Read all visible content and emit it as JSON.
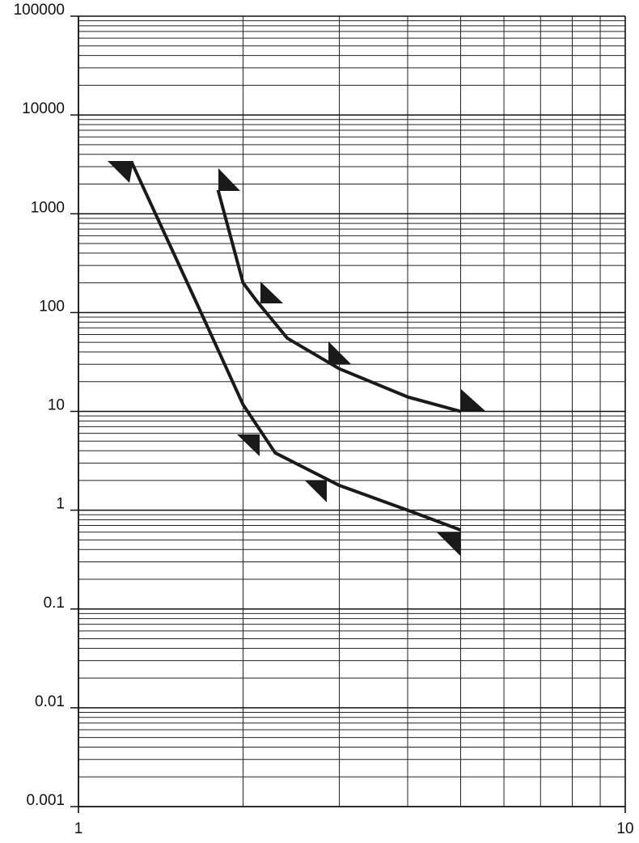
{
  "chart_data": {
    "type": "line",
    "xlog": true,
    "ylog": true,
    "grid": true,
    "minor_grid": true,
    "xlim": [
      1,
      10
    ],
    "ylim": [
      0.001,
      100000
    ],
    "xticks": [
      1,
      10
    ],
    "yticks": [
      0.001,
      0.01,
      0.1,
      1,
      10,
      100,
      1000,
      10000,
      100000
    ],
    "series": [
      {
        "color": "#1a1a1a",
        "x": [
          1.25,
          1.66,
          2,
          2.29,
          3,
          4,
          5
        ],
        "values": [
          3360,
          112,
          11.7,
          3.8,
          1.78,
          1,
          0.63
        ]
      },
      {
        "color": "#1a1a1a",
        "x": [
          1.8,
          2,
          2.12,
          2.41,
          3,
          4,
          5
        ],
        "values": [
          1740,
          200,
          130,
          55,
          27,
          14,
          10
        ]
      }
    ]
  }
}
